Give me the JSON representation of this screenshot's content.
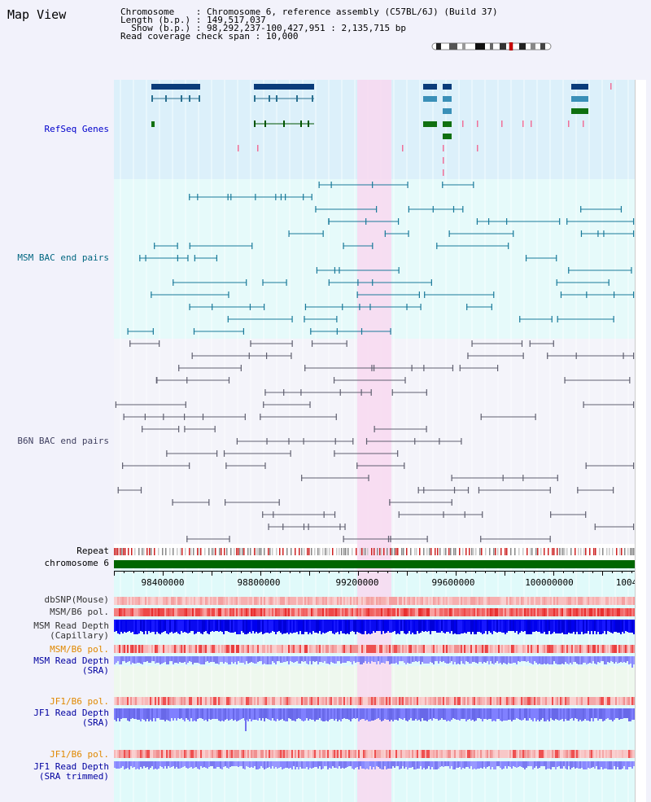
{
  "header": {
    "title": "Map View",
    "chromosome_line": "Chromosome    : Chromosome 6, reference assembly (C57BL/6J) (Build 37)",
    "length_line": "Length (b.p.) : 149,517,037",
    "show_line": "  Show (b.p.) : 98,292,237-100,427,951 : 2,135,715 bp",
    "coverage_line": "Read coverage check span : 10,000"
  },
  "tracks": {
    "refseq": "RefSeq Genes",
    "msm_bac": "MSM BAC end pairs",
    "b6n_bac": "B6N BAC end pairs",
    "repeat": "Repeat",
    "chromosome": "chromosome 6",
    "dbsnp": "dbSNP(Mouse)",
    "msm_b6_pol_1": "MSM/B6 pol.",
    "msm_depth_cap": "MSM Read Depth\n(Capillary)",
    "msm_b6_pol_2": "MSM/B6 pol.",
    "msm_depth_sra": "MSM Read Depth\n(SRA)",
    "jf1_b6_pol_1": "JF1/B6 pol.",
    "jf1_depth_sra": "JF1 Read Depth\n(SRA)",
    "jf1_b6_pol_2": "JF1/B6 pol.",
    "jf1_depth_trim": "JF1 Read Depth\n(SRA trimmed)"
  },
  "axis": {
    "ticks": [
      "98400000",
      "98800000",
      "99200000",
      "99600000",
      "100000000",
      "1004"
    ]
  },
  "colors": {
    "refseq_bg": "#dcf0fa",
    "msm_bac_bg": "#e6fafa",
    "b6n_bac_bg": "#f2f2f8",
    "lower_bg": "#e0fafa",
    "highlight": "#f8d8f0",
    "refseq_label": "#0000cc",
    "msm_label": "#006680",
    "b6n_label": "#404060",
    "pol_label": "#e08800",
    "depth_label": "#0000a0",
    "chromosome_bar": "#006600",
    "snp": "#f06060",
    "depth_capillary": "#0000ee",
    "depth_sra": "#8888ff"
  }
}
